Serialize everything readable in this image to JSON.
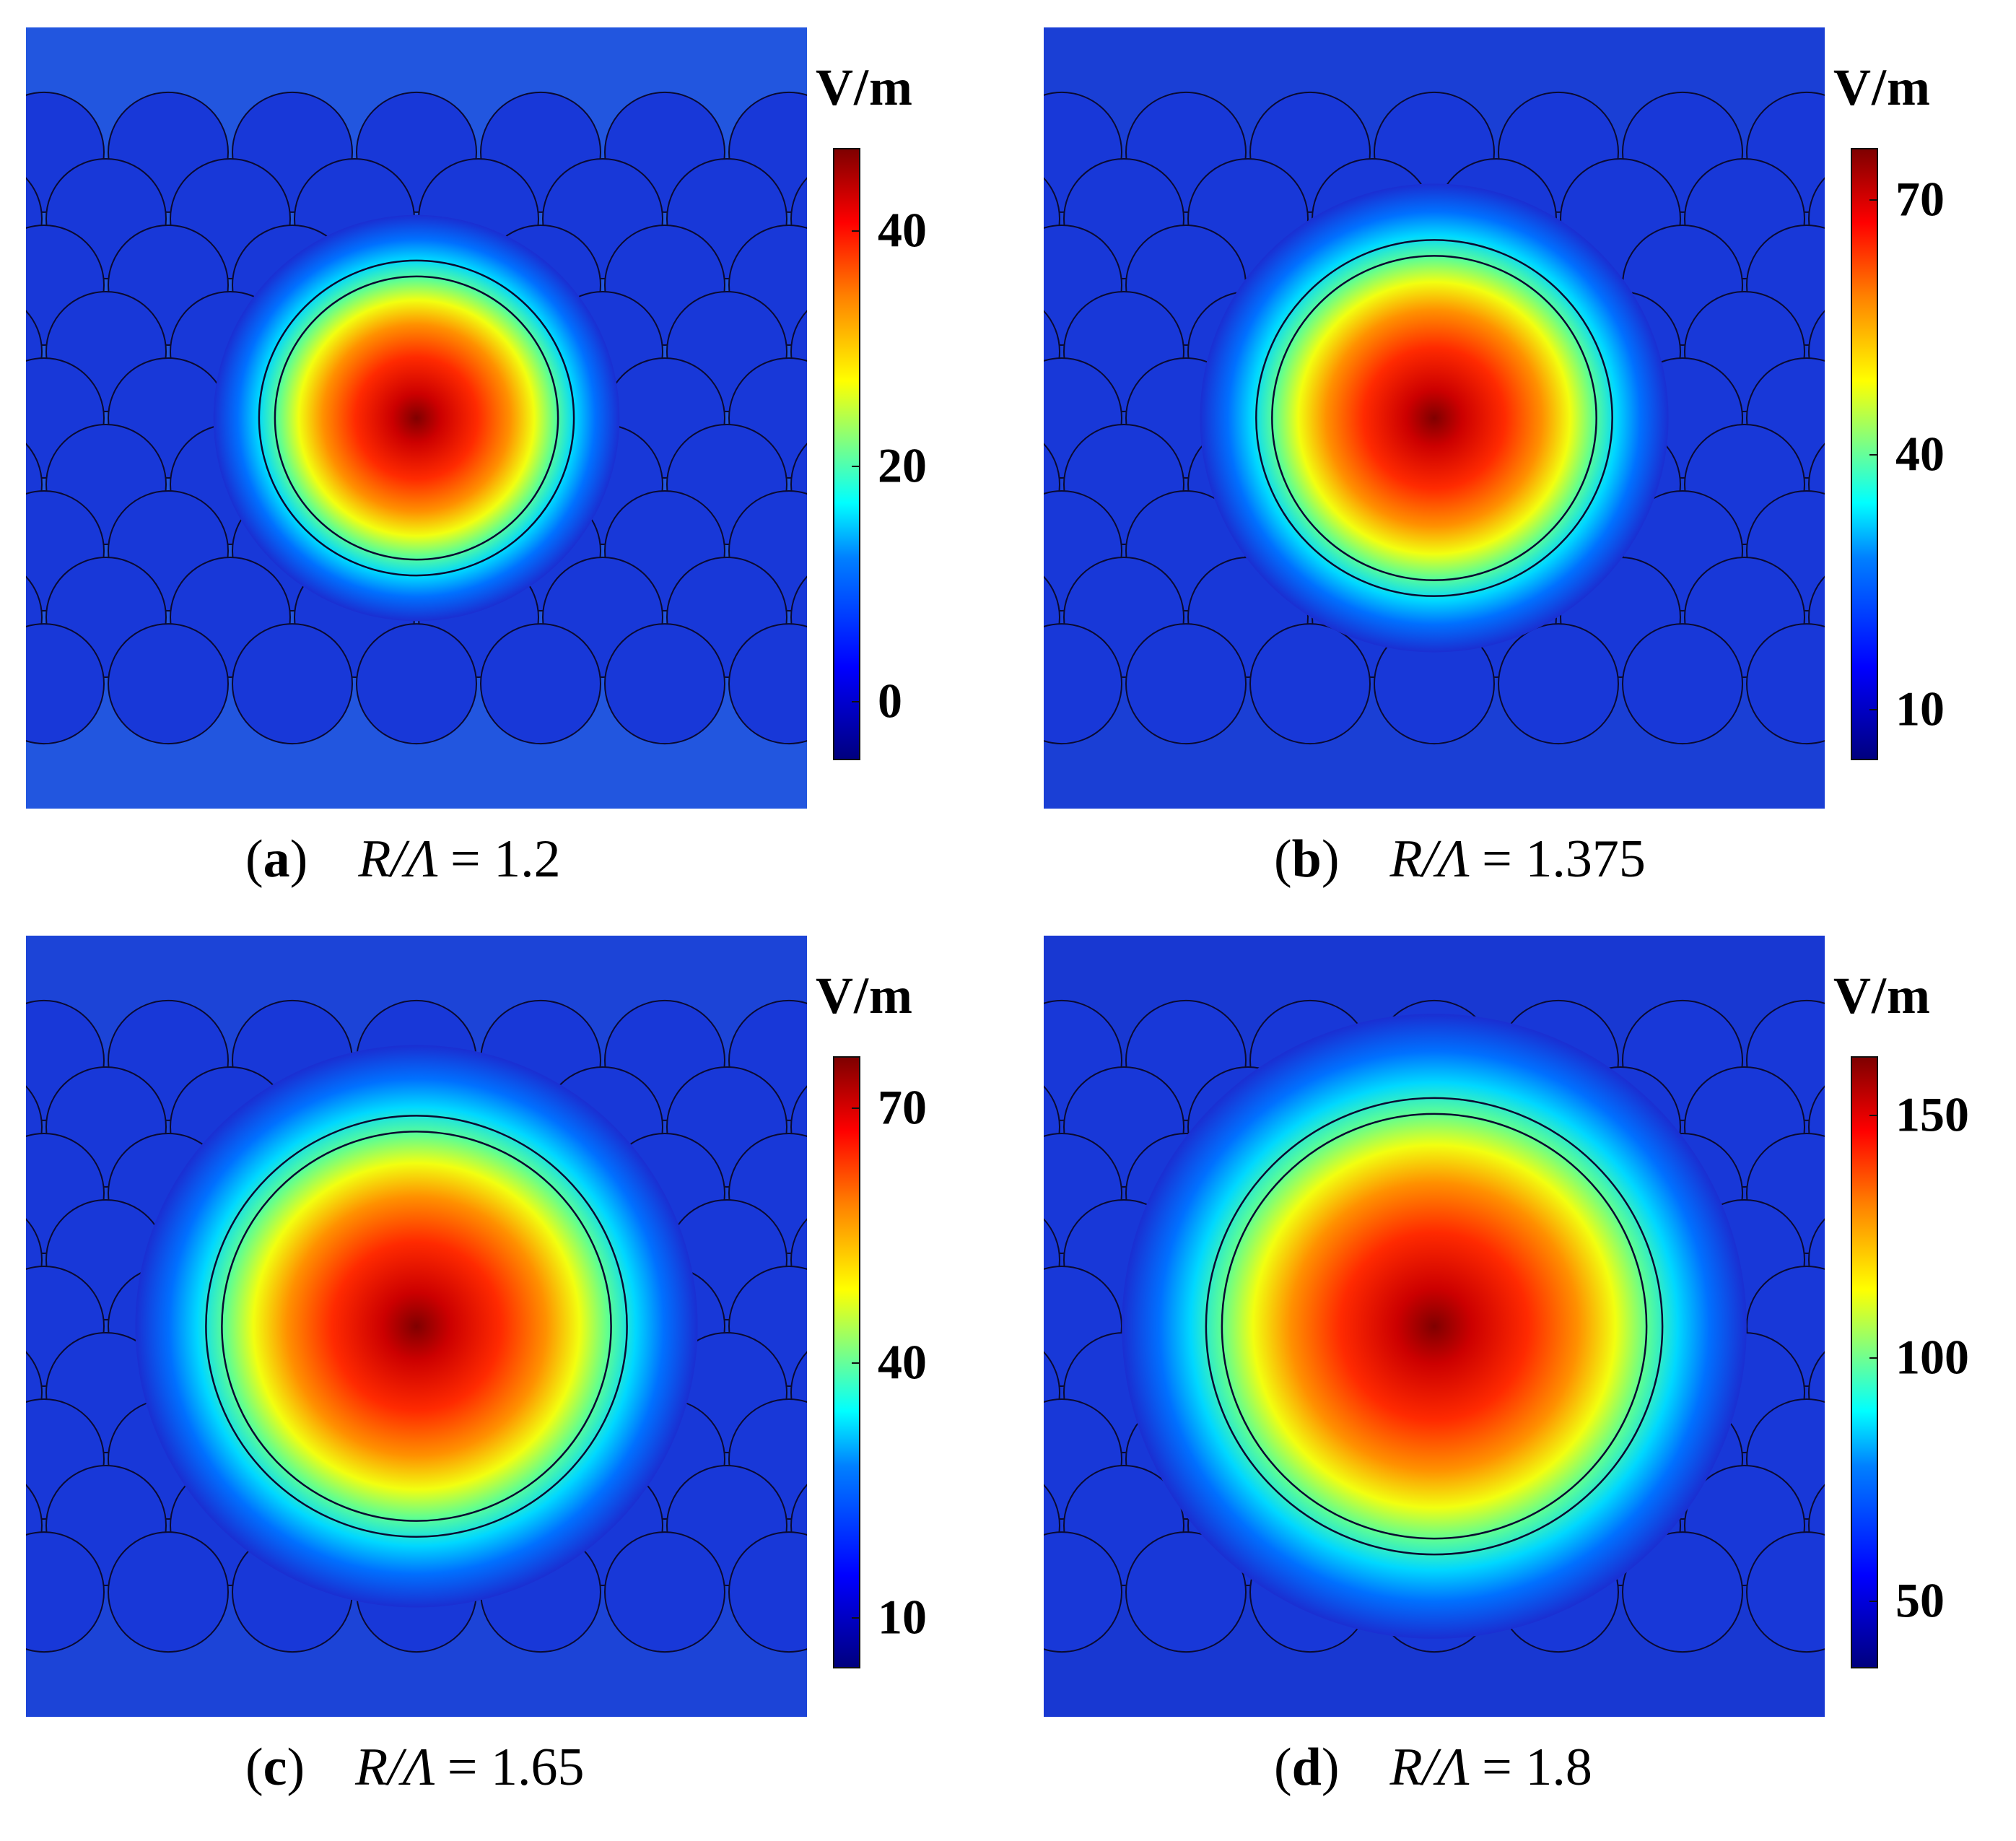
{
  "panels": [
    {
      "id": "a",
      "label": "a",
      "caption_var": "R/Λ",
      "caption_value": "1.2",
      "unit": "V/m",
      "colorbar_ticks": [
        "40",
        "20",
        "0"
      ],
      "colorbar_range": [
        -5,
        47
      ],
      "colorbar_tick_values": [
        40,
        20,
        0
      ],
      "ring_scale": 1.2,
      "spot_scale": 0.52,
      "cladding_brightness": 0.45
    },
    {
      "id": "b",
      "label": "b",
      "caption_var": "R/Λ",
      "caption_value": "1.375",
      "unit": "V/m",
      "colorbar_ticks": [
        "70",
        "40",
        "10"
      ],
      "colorbar_range": [
        4,
        76
      ],
      "colorbar_tick_values": [
        70,
        40,
        10
      ],
      "ring_scale": 1.375,
      "spot_scale": 0.6,
      "cladding_brightness": 0.2
    },
    {
      "id": "c",
      "label": "c",
      "caption_var": "R/Λ",
      "caption_value": "1.65",
      "unit": "V/m",
      "colorbar_ticks": [
        "70",
        "40",
        "10"
      ],
      "colorbar_range": [
        4,
        76
      ],
      "colorbar_tick_values": [
        70,
        40,
        10
      ],
      "ring_scale": 1.65,
      "spot_scale": 0.72,
      "cladding_brightness": 0.25
    },
    {
      "id": "d",
      "label": "d",
      "caption_var": "R/Λ",
      "caption_value": "1.8",
      "unit": "V/m",
      "colorbar_ticks": [
        "150",
        "100",
        "50"
      ],
      "colorbar_range": [
        36,
        162
      ],
      "colorbar_tick_values": [
        150,
        100,
        50
      ],
      "ring_scale": 1.8,
      "spot_scale": 0.8,
      "cladding_brightness": 0.12
    }
  ]
}
